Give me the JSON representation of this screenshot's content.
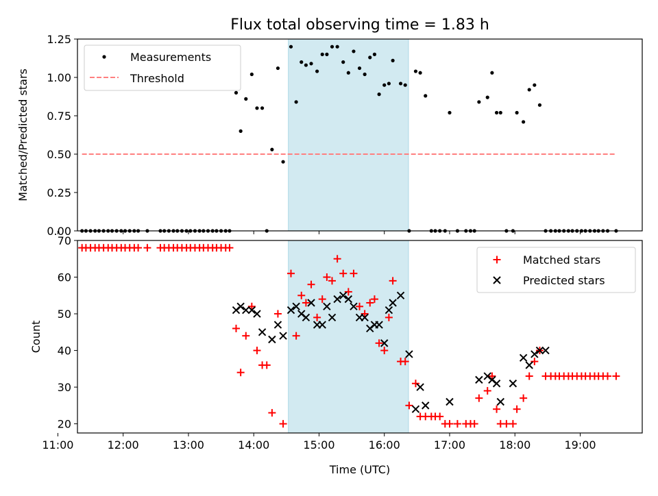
{
  "title": "Flux total observing time = 1.83 h",
  "colors": {
    "measurement": "#000000",
    "threshold": "#ff7f7f",
    "matched": "#ff0000",
    "predicted": "#000000",
    "span": "#add8e6"
  },
  "chart_data": [
    {
      "type": "scatter",
      "ylabel": "Matched/Predicted stars",
      "xlim": [
        11.3,
        19.95
      ],
      "ylim": [
        0,
        1.25
      ],
      "yticks": [
        "0.00",
        "0.25",
        "0.50",
        "0.75",
        "1.00",
        "1.25"
      ],
      "grid": false,
      "legend_position": "upper-left",
      "shaded_span": [
        14.53,
        16.37
      ],
      "series": [
        {
          "name": "Measurements",
          "x": [
            11.37,
            11.43,
            11.5,
            11.57,
            11.63,
            11.7,
            11.77,
            11.83,
            11.9,
            11.97,
            12.03,
            12.1,
            12.17,
            12.23,
            12.37,
            12.57,
            12.63,
            12.7,
            12.77,
            12.83,
            12.9,
            12.97,
            13.03,
            13.1,
            13.17,
            13.23,
            13.3,
            13.37,
            13.43,
            13.5,
            13.57,
            13.63,
            13.73,
            13.8,
            13.88,
            13.97,
            14.05,
            14.13,
            14.2,
            14.28,
            14.37,
            14.45,
            14.57,
            14.65,
            14.73,
            14.8,
            14.88,
            14.97,
            15.05,
            15.12,
            15.2,
            15.28,
            15.37,
            15.45,
            15.53,
            15.62,
            15.7,
            15.78,
            15.85,
            15.92,
            16.0,
            16.07,
            16.13,
            16.25,
            16.32,
            16.38,
            16.48,
            16.55,
            16.63,
            16.72,
            16.78,
            16.85,
            16.93,
            17.0,
            17.12,
            17.25,
            17.32,
            17.38,
            17.45,
            17.58,
            17.65,
            17.72,
            17.78,
            17.87,
            17.97,
            18.03,
            18.13,
            18.22,
            18.3,
            18.38,
            18.47,
            18.55,
            18.62,
            18.68,
            18.75,
            18.82,
            18.88,
            18.95,
            19.02,
            19.08,
            19.15,
            19.22,
            19.28,
            19.35,
            19.42,
            19.55
          ],
          "y": [
            0,
            0,
            0,
            0,
            0,
            0,
            0,
            0,
            0,
            0,
            0,
            0,
            0,
            0,
            0,
            0,
            0,
            0,
            0,
            0,
            0,
            0,
            0,
            0,
            0,
            0,
            0,
            0,
            0,
            0,
            0,
            0,
            0.9,
            0.65,
            0.86,
            1.02,
            0.8,
            0.8,
            0,
            0.53,
            1.06,
            0.45,
            1.2,
            0.84,
            1.1,
            1.08,
            1.09,
            1.04,
            1.15,
            1.15,
            1.2,
            1.2,
            1.1,
            1.03,
            1.17,
            1.06,
            1.02,
            1.13,
            1.15,
            0.89,
            0.95,
            0.96,
            1.11,
            0.96,
            0.95,
            0,
            1.04,
            1.03,
            0.88,
            0,
            0,
            0,
            0,
            0.77,
            0,
            0,
            0,
            0,
            0.84,
            0.87,
            1.03,
            0.77,
            0.77,
            0,
            0,
            0.77,
            0.71,
            0.92,
            0.95,
            0.82,
            0,
            0,
            0,
            0,
            0,
            0,
            0,
            0,
            0,
            0,
            0,
            0,
            0,
            0,
            0,
            0
          ]
        },
        {
          "name": "Threshold",
          "x": [
            11.37,
            19.55
          ],
          "y": [
            0.5,
            0.5
          ]
        }
      ]
    },
    {
      "type": "scatter",
      "xlabel": "Time (UTC)",
      "ylabel": "Count",
      "xlim": [
        11.3,
        19.95
      ],
      "ylim": [
        17.5,
        70
      ],
      "xticks": [
        "11:00",
        "12:00",
        "13:00",
        "14:00",
        "15:00",
        "16:00",
        "17:00",
        "18:00",
        "19:00"
      ],
      "yticks": [
        "20",
        "30",
        "40",
        "50",
        "60",
        "70"
      ],
      "grid": false,
      "legend_position": "upper-right",
      "shaded_span": [
        14.53,
        16.37
      ],
      "series": [
        {
          "name": "Matched stars",
          "x": [
            11.37,
            11.43,
            11.5,
            11.57,
            11.63,
            11.7,
            11.77,
            11.83,
            11.9,
            11.97,
            12.03,
            12.1,
            12.17,
            12.23,
            12.37,
            12.57,
            12.63,
            12.7,
            12.77,
            12.83,
            12.9,
            12.97,
            13.03,
            13.1,
            13.17,
            13.23,
            13.3,
            13.37,
            13.43,
            13.5,
            13.57,
            13.63,
            13.73,
            13.8,
            13.88,
            13.97,
            14.05,
            14.13,
            14.2,
            14.28,
            14.37,
            14.45,
            14.57,
            14.65,
            14.73,
            14.8,
            14.88,
            14.97,
            15.05,
            15.12,
            15.2,
            15.28,
            15.37,
            15.45,
            15.53,
            15.62,
            15.7,
            15.78,
            15.85,
            15.92,
            16.0,
            16.07,
            16.13,
            16.25,
            16.32,
            16.38,
            16.48,
            16.55,
            16.63,
            16.72,
            16.78,
            16.85,
            16.93,
            17.0,
            17.12,
            17.25,
            17.32,
            17.38,
            17.45,
            17.58,
            17.65,
            17.72,
            17.78,
            17.87,
            17.97,
            18.03,
            18.13,
            18.22,
            18.3,
            18.38,
            18.47,
            18.55,
            18.62,
            18.68,
            18.75,
            18.82,
            18.88,
            18.95,
            19.02,
            19.08,
            19.15,
            19.22,
            19.28,
            19.35,
            19.42,
            19.55
          ],
          "y": [
            68,
            68,
            68,
            68,
            68,
            68,
            68,
            68,
            68,
            68,
            68,
            68,
            68,
            68,
            68,
            68,
            68,
            68,
            68,
            68,
            68,
            68,
            68,
            68,
            68,
            68,
            68,
            68,
            68,
            68,
            68,
            68,
            46,
            34,
            44,
            52,
            40,
            36,
            36,
            23,
            50,
            20,
            61,
            44,
            55,
            53,
            58,
            49,
            54,
            60,
            59,
            65,
            61,
            56,
            61,
            52,
            50,
            53,
            54,
            42,
            40,
            49,
            59,
            37,
            37,
            25,
            31,
            22,
            22,
            22,
            22,
            22,
            20,
            20,
            20,
            20,
            20,
            20,
            27,
            29,
            33,
            24,
            20,
            20,
            20,
            24,
            27,
            33,
            37,
            40,
            33,
            33,
            33,
            33,
            33,
            33,
            33,
            33,
            33,
            33,
            33,
            33,
            33,
            33,
            33,
            33
          ]
        },
        {
          "name": "Predicted stars",
          "x": [
            13.73,
            13.8,
            13.88,
            13.97,
            14.05,
            14.13,
            14.28,
            14.37,
            14.45,
            14.57,
            14.65,
            14.73,
            14.8,
            14.88,
            14.97,
            15.05,
            15.12,
            15.2,
            15.28,
            15.37,
            15.45,
            15.53,
            15.62,
            15.7,
            15.78,
            15.85,
            15.92,
            16.0,
            16.07,
            16.13,
            16.25,
            16.38,
            16.48,
            16.55,
            16.63,
            17.0,
            17.45,
            17.58,
            17.65,
            17.72,
            17.78,
            17.97,
            18.13,
            18.22,
            18.3,
            18.38,
            18.47
          ],
          "y": [
            51,
            52,
            51,
            51,
            50,
            45,
            43,
            47,
            44,
            51,
            52,
            50,
            49,
            53,
            47,
            47,
            52,
            49,
            54,
            55,
            54,
            52,
            49,
            49,
            46,
            47,
            47,
            42,
            51,
            53,
            55,
            39,
            24,
            30,
            25,
            26,
            32,
            33,
            32,
            31,
            26,
            31,
            38,
            36,
            39,
            40,
            40
          ]
        }
      ]
    }
  ]
}
